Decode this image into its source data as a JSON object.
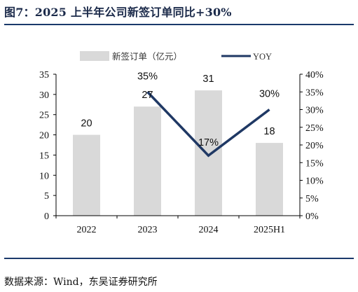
{
  "title": "图7：2025 上半年公司新签订单同比+30%",
  "source": "数据来源：Wind，东吴证券研究所",
  "chart_data": {
    "type": "bar",
    "categories": [
      "2022",
      "2023",
      "2024",
      "2025H1"
    ],
    "series": [
      {
        "name": "新签订单（亿元）",
        "type": "bar",
        "axis": "left",
        "values": [
          20,
          27,
          31,
          18
        ],
        "labels": [
          "20",
          "27",
          "31",
          "18"
        ],
        "color": "#d9d9d9"
      },
      {
        "name": "YOY",
        "type": "line",
        "axis": "right",
        "values": [
          null,
          35,
          17,
          30
        ],
        "labels": [
          "",
          "35%",
          "17%",
          "30%"
        ],
        "color": "#1f3864"
      }
    ],
    "left_axis": {
      "min": 0,
      "max": 35,
      "ticks": [
        "0",
        "5",
        "10",
        "15",
        "20",
        "25",
        "30",
        "35"
      ]
    },
    "right_axis": {
      "min": 0,
      "max": 40,
      "ticks": [
        "0%",
        "5%",
        "10%",
        "15%",
        "20%",
        "25%",
        "30%",
        "35%",
        "40%"
      ]
    },
    "grid": false,
    "legend": "top"
  }
}
